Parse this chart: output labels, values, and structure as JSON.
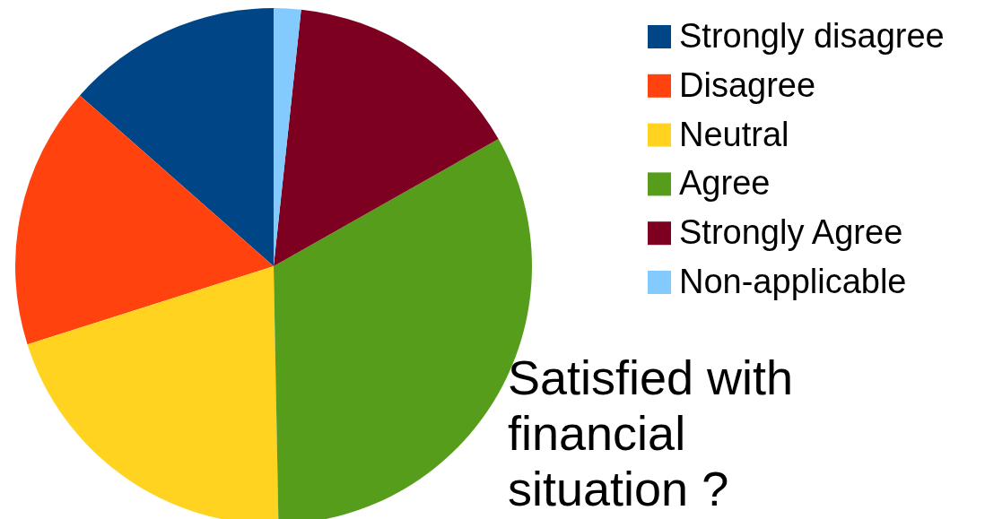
{
  "chart_data": {
    "type": "pie",
    "title": "Satisfied with financial situation ?",
    "categories": [
      "Strongly disagree",
      "Disagree",
      "Neutral",
      "Agree",
      "Strongly Agree",
      "Non-applicable"
    ],
    "values": [
      13.5,
      16.4,
      20.4,
      32.9,
      15.1,
      1.7
    ],
    "colors": [
      "#004586",
      "#ff420e",
      "#ffd320",
      "#579d1c",
      "#7e0021",
      "#83caff"
    ],
    "legend": "top right"
  }
}
